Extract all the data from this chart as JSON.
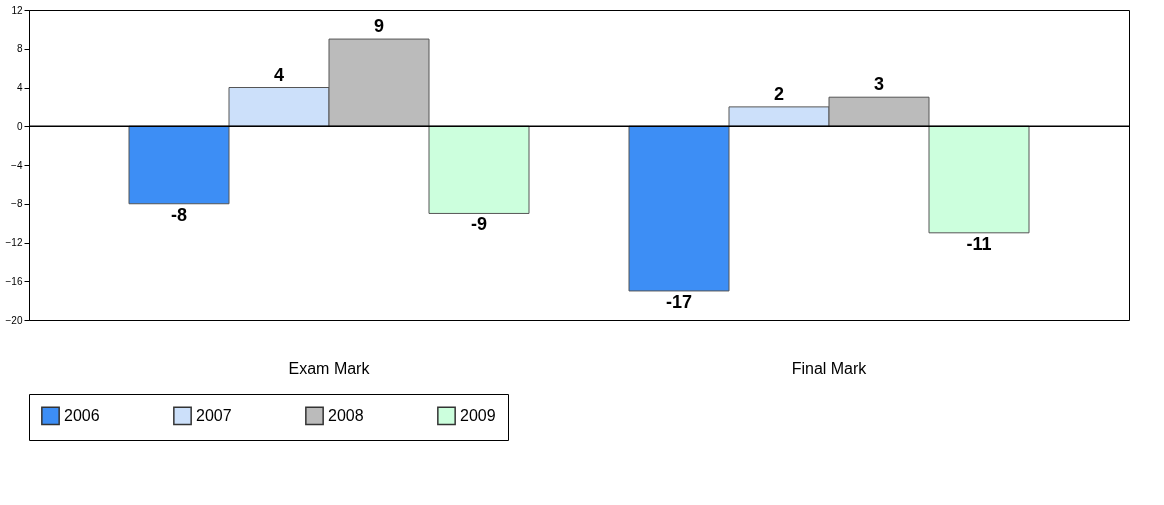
{
  "chart_data": {
    "type": "bar",
    "categories": [
      "Exam Mark",
      "Final Mark"
    ],
    "series": [
      {
        "name": "2006",
        "color": "#3d8ef5",
        "values": [
          -8,
          -17
        ]
      },
      {
        "name": "2007",
        "color": "#cce0fa",
        "values": [
          4,
          2
        ]
      },
      {
        "name": "2008",
        "color": "#bbbbbb",
        "values": [
          9,
          3
        ]
      },
      {
        "name": "2009",
        "color": "#ccffdd",
        "values": [
          -9,
          -11
        ]
      }
    ],
    "ylim": [
      -20,
      12
    ],
    "yticks": [
      -20,
      -16,
      -12,
      -8,
      -4,
      0,
      4,
      8,
      12
    ],
    "grid": false,
    "legend": "bottom",
    "data_labels": true,
    "ref_lines": [
      {
        "axis": "y",
        "value": 0,
        "color": "#000000"
      }
    ]
  }
}
